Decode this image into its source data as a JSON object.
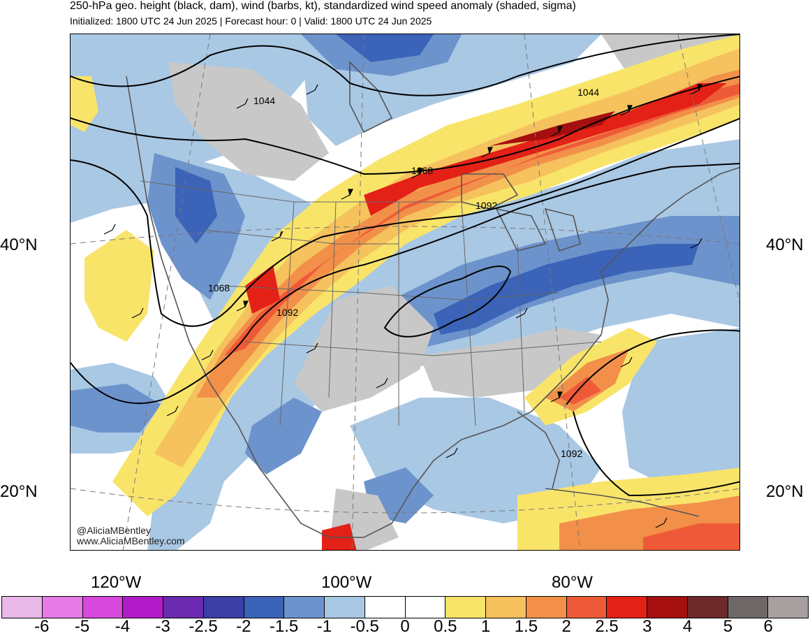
{
  "header": {
    "title": "250-hPa geo. height (black, dam), wind (barbs, kt), standardized wind speed anomaly (shaded, sigma)",
    "subtitle": "Initialized: 1800 UTC 24 Jun 2025 | Forecast hour: 0 | Valid: 1800 UTC 24 Jun 2025"
  },
  "map": {
    "lat_labels": [
      "40°N",
      "20°N"
    ],
    "lon_labels": [
      "120°W",
      "100°W",
      "80°W"
    ],
    "contour_labels": [
      "1044",
      "1044",
      "1068",
      "1068",
      "1092",
      "1092",
      "1092"
    ],
    "credit_handle": "@AliciaMBentley",
    "credit_site": "www.AliciaMBentley.com"
  },
  "colorbar": {
    "labels": [
      "-6",
      "-5",
      "-4",
      "-3",
      "-2.5",
      "-2",
      "-1.5",
      "-1",
      "-0.5",
      "0",
      "0.5",
      "1",
      "1.5",
      "2",
      "2.5",
      "3",
      "4",
      "5",
      "6"
    ],
    "colors": [
      "#e8b8e8",
      "#e67ae6",
      "#d748dc",
      "#b21cc8",
      "#6a2bb0",
      "#3d3ea6",
      "#3b63b8",
      "#6d93cc",
      "#a9c8e4",
      "#ffffff",
      "#ffffff",
      "#f9e46a",
      "#f5c25e",
      "#f2904a",
      "#ee5a37",
      "#e32117",
      "#a50f0f",
      "#6e2a2a",
      "#6e6868",
      "#a8a0a0"
    ]
  }
}
